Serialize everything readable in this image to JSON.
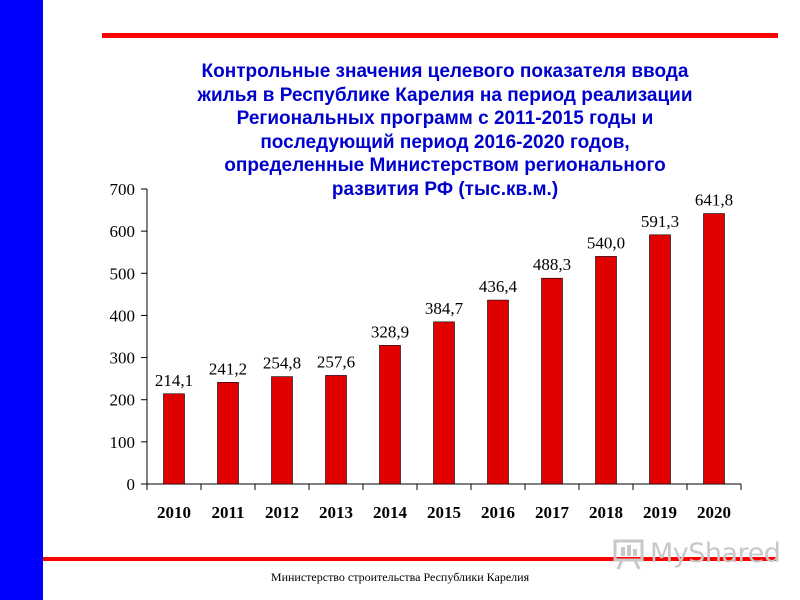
{
  "colors": {
    "band": "#0000ff",
    "rule": "#ff0000",
    "bar": "#e00000",
    "title": "#0000cc",
    "axis": "#000000"
  },
  "watermark": {
    "text": "MyShared",
    "icon": "presentation-board-icon"
  },
  "footer": "Министерство строительства  Республики Карелия",
  "chart_data": {
    "type": "bar",
    "title_lines": [
      "Контрольные значения целевого показателя ввода",
      "жилья в Республике Карелия на период реализации",
      "Региональных программ с 2011-2015 годы и",
      "последующий период 2016-2020 годов,",
      "определенные Министерством регионального",
      "развития РФ (тыс.кв.м.)"
    ],
    "categories": [
      "2010",
      "2011",
      "2012",
      "2013",
      "2014",
      "2015",
      "2016",
      "2017",
      "2018",
      "2019",
      "2020"
    ],
    "values": [
      214.1,
      241.2,
      254.8,
      257.6,
      328.9,
      384.7,
      436.4,
      488.3,
      540.0,
      591.3,
      641.8
    ],
    "data_labels": [
      "214,1",
      "241,2",
      "254,8",
      "257,6",
      "328,9",
      "384,7",
      "436,4",
      "488,3",
      "540,0",
      "591,3",
      "641,8"
    ],
    "yticks": [
      "0",
      "100",
      "200",
      "300",
      "400",
      "500",
      "600",
      "700"
    ],
    "ylim": [
      0,
      700
    ],
    "grid": false,
    "legend": "none"
  }
}
